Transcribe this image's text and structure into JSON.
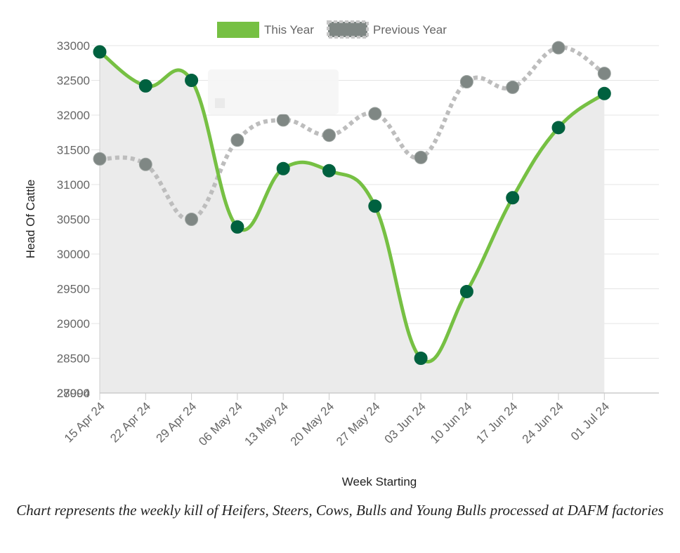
{
  "chart_data": {
    "type": "line",
    "categories": [
      "15 Apr 24",
      "22 Apr 24",
      "29 Apr 24",
      "06 May 24",
      "13 May 24",
      "20 May 24",
      "27 May 24",
      "03 Jun 24",
      "10 Jun 24",
      "17 Jun 24",
      "24 Jun 24",
      "01 Jul 24"
    ],
    "series": [
      {
        "name": "This Year",
        "color": "#76c043",
        "point_color": "#00613f",
        "style": "solid",
        "values": [
          32910,
          32420,
          32500,
          30390,
          31230,
          31200,
          30690,
          28500,
          29460,
          30810,
          31820,
          32310
        ]
      },
      {
        "name": "Previous Year",
        "color": "#bdbdbd",
        "point_color": "#7f8784",
        "style": "dotted",
        "values": [
          31370,
          31290,
          30500,
          31640,
          31930,
          31710,
          32020,
          31390,
          32480,
          32400,
          32970,
          32600
        ]
      }
    ],
    "xlabel": "Week Starting",
    "ylabel": "Head Of Cattle",
    "y_ticks": [
      27994,
      28000,
      28500,
      29000,
      29500,
      30000,
      30500,
      31000,
      31500,
      32000,
      32500,
      33000
    ],
    "ylim": [
      28000,
      33000
    ],
    "grid": true,
    "legend": "top-center",
    "fill_under": "This Year"
  },
  "caption": "Chart represents the weekly kill of Heifers, Steers, Cows, Bulls and Young Bulls processed at DAFM factories"
}
